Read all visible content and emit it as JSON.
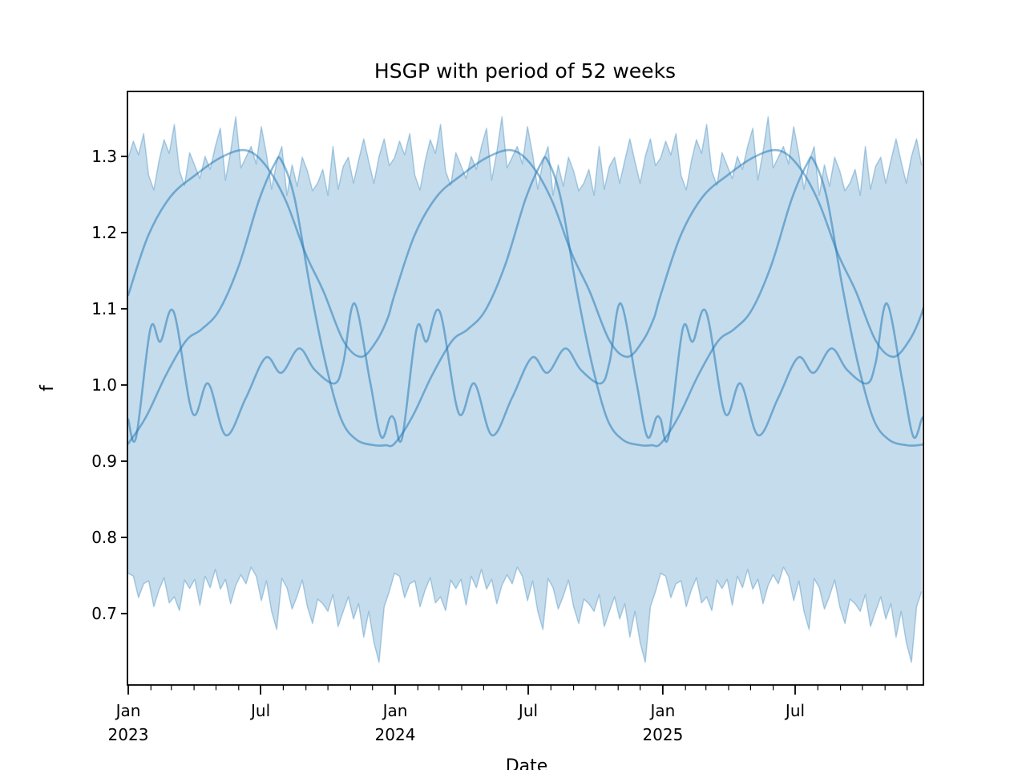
{
  "title": "HSGP with period of 52 weeks",
  "axes": {
    "xlabel": "Date",
    "ylabel": "f",
    "y_ticks": [
      {
        "value": 0.7,
        "label": "0.7"
      },
      {
        "value": 0.8,
        "label": "0.8"
      },
      {
        "value": 0.9,
        "label": "0.9"
      },
      {
        "value": 1.0,
        "label": "1.0"
      },
      {
        "value": 1.1,
        "label": "1.1"
      },
      {
        "value": 1.2,
        "label": "1.2"
      },
      {
        "value": 1.3,
        "label": "1.3"
      }
    ],
    "x_major_ticks": [
      {
        "day": 0,
        "lines": [
          "Jan",
          "2023"
        ]
      },
      {
        "day": 181,
        "lines": [
          "Jul"
        ]
      },
      {
        "day": 365,
        "lines": [
          "Jan",
          "2024"
        ]
      },
      {
        "day": 547,
        "lines": [
          "Jul"
        ]
      },
      {
        "day": 731,
        "lines": [
          "Jan",
          "2025"
        ]
      },
      {
        "day": 912,
        "lines": [
          "Jul"
        ]
      }
    ],
    "x_minor_tick_days": [
      31,
      59,
      90,
      120,
      151,
      212,
      243,
      273,
      304,
      334,
      396,
      425,
      456,
      486,
      517,
      578,
      609,
      639,
      670,
      700,
      762,
      790,
      821,
      851,
      882,
      943,
      974,
      1004,
      1035,
      1065
    ]
  },
  "chart_data": {
    "type": "area",
    "title": "HSGP with period of 52 weeks",
    "xlabel": "Date",
    "ylabel": "f",
    "x_range_dates": [
      "2023-01-01",
      "2025-12-21"
    ],
    "x_unit": "weekly samples, 156 weeks total",
    "ylim": [
      0.606,
      1.385
    ],
    "grid": false,
    "legend": "none",
    "band": {
      "description": "HDI band, weekly jagged envelope; 52-week pattern repeated 3 years",
      "repeats": 3,
      "top_weekly": [
        1.298,
        1.32,
        1.302,
        1.33,
        1.275,
        1.256,
        1.294,
        1.322,
        1.304,
        1.342,
        1.281,
        1.262,
        1.305,
        1.288,
        1.271,
        1.3,
        1.283,
        1.313,
        1.337,
        1.269,
        1.306,
        1.352,
        1.285,
        1.299,
        1.313,
        1.29,
        1.339,
        1.303,
        1.257,
        1.293,
        1.313,
        1.249,
        1.289,
        1.261,
        1.299,
        1.281,
        1.255,
        1.265,
        1.283,
        1.249,
        1.313,
        1.257,
        1.287,
        1.299,
        1.265,
        1.295,
        1.323,
        1.293,
        1.265,
        1.3,
        1.323,
        1.288
      ],
      "bottom_weekly": [
        0.753,
        0.749,
        0.721,
        0.739,
        0.743,
        0.709,
        0.731,
        0.747,
        0.714,
        0.722,
        0.704,
        0.744,
        0.733,
        0.745,
        0.711,
        0.749,
        0.734,
        0.758,
        0.732,
        0.745,
        0.713,
        0.737,
        0.751,
        0.739,
        0.761,
        0.749,
        0.717,
        0.743,
        0.703,
        0.679,
        0.746,
        0.734,
        0.706,
        0.723,
        0.744,
        0.709,
        0.687,
        0.719,
        0.713,
        0.703,
        0.725,
        0.683,
        0.703,
        0.722,
        0.693,
        0.713,
        0.669,
        0.703,
        0.662,
        0.636,
        0.709,
        0.729
      ]
    },
    "curves": [
      {
        "name": "posterior-sample-1-broad-june-peak",
        "period_weeks": 52,
        "keypoints_month_value": [
          [
            0,
            1.118
          ],
          [
            0.9,
            1.196
          ],
          [
            1.9,
            1.247
          ],
          [
            3.0,
            1.275
          ],
          [
            4.2,
            1.299
          ],
          [
            5.3,
            1.308
          ],
          [
            6.2,
            1.288
          ],
          [
            7.1,
            1.242
          ],
          [
            8.0,
            1.172
          ],
          [
            8.8,
            1.123
          ],
          [
            9.7,
            1.058
          ],
          [
            10.5,
            1.037
          ],
          [
            11.2,
            1.058
          ],
          [
            11.7,
            1.088
          ]
        ]
      },
      {
        "name": "posterior-sample-2-july-peak-steep-fall",
        "period_weeks": 52,
        "keypoints_month_value": [
          [
            0,
            0.923
          ],
          [
            0.8,
            0.958
          ],
          [
            1.7,
            1.013
          ],
          [
            2.6,
            1.058
          ],
          [
            3.3,
            1.073
          ],
          [
            4.1,
            1.098
          ],
          [
            5.0,
            1.158
          ],
          [
            5.9,
            1.243
          ],
          [
            6.6,
            1.29
          ],
          [
            6.9,
            1.295
          ],
          [
            7.5,
            1.245
          ],
          [
            8.2,
            1.128
          ],
          [
            8.9,
            1.028
          ],
          [
            9.6,
            0.955
          ],
          [
            10.3,
            0.928
          ],
          [
            11.1,
            0.921
          ],
          [
            11.6,
            0.921
          ]
        ]
      },
      {
        "name": "posterior-sample-3-wiggly",
        "period_weeks": 52,
        "keypoints_month_value": [
          [
            0,
            0.955
          ],
          [
            0.35,
            0.931
          ],
          [
            1.0,
            1.074
          ],
          [
            1.45,
            1.057
          ],
          [
            2.05,
            1.096
          ],
          [
            2.9,
            0.963
          ],
          [
            3.6,
            1.002
          ],
          [
            4.4,
            0.934
          ],
          [
            5.3,
            0.983
          ],
          [
            6.2,
            1.036
          ],
          [
            6.9,
            1.016
          ],
          [
            7.7,
            1.048
          ],
          [
            8.4,
            1.02
          ],
          [
            9.3,
            1.002
          ],
          [
            9.7,
            1.03
          ],
          [
            10.2,
            1.107
          ],
          [
            10.9,
            1.005
          ],
          [
            11.4,
            0.932
          ],
          [
            11.8,
            0.957
          ]
        ]
      }
    ],
    "colors": {
      "line": "#1f77b4",
      "line_alpha": 0.52,
      "band_alpha": 0.26,
      "band_edge_alpha": 0.33,
      "spine": "#000000"
    }
  }
}
